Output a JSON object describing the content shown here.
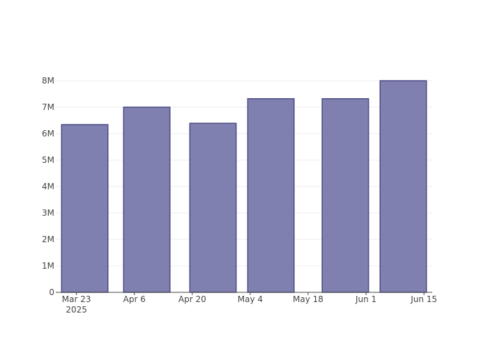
{
  "chart_data": {
    "type": "bar",
    "x": [
      "2025-03-25",
      "2025-04-09",
      "2025-04-25",
      "2025-05-09",
      "2025-05-27",
      "2025-06-10"
    ],
    "values": [
      6340000,
      7000000,
      6390000,
      7320000,
      7320000,
      8000000
    ],
    "color": "#7f7fb0",
    "edge_color": "#4a4a85",
    "xlim": [
      "2025-03-18",
      "2025-06-17"
    ],
    "xticks": [
      {
        "value": "2025-03-23",
        "label": "Mar 23\n2025"
      },
      {
        "value": "2025-04-06",
        "label": "Apr 6"
      },
      {
        "value": "2025-04-20",
        "label": "Apr 20"
      },
      {
        "value": "2025-05-04",
        "label": "May 4"
      },
      {
        "value": "2025-05-18",
        "label": "May 18"
      },
      {
        "value": "2025-06-01",
        "label": "Jun 1"
      },
      {
        "value": "2025-06-15",
        "label": "Jun 15"
      }
    ],
    "ylim": [
      0,
      8420000
    ],
    "yticks": [
      0,
      {
        "value": 1000000,
        "label": "1M"
      },
      {
        "value": 2000000,
        "label": "2M"
      },
      {
        "value": 3000000,
        "label": "3M"
      },
      {
        "value": 4000000,
        "label": "4M"
      },
      {
        "value": 5000000,
        "label": "5M"
      },
      {
        "value": 6000000,
        "label": "6M"
      },
      {
        "value": 7000000,
        "label": "7M"
      },
      {
        "value": 8000000,
        "label": "8M"
      }
    ],
    "grid": true
  }
}
